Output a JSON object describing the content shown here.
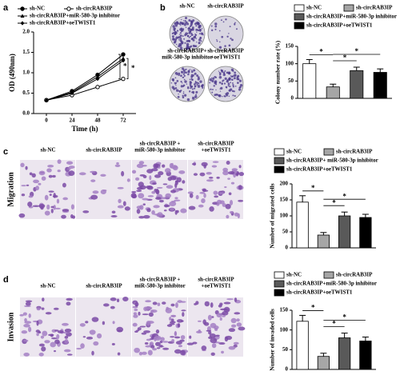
{
  "panels": {
    "letters": [
      "a",
      "b",
      "c",
      "d"
    ],
    "b_images": [
      [
        "sh-NC"
      ],
      [
        "sh-circRAB3IP"
      ],
      [
        "sh-circRAB3IP+",
        "miR-580-3p inhibitor"
      ],
      [
        "sh-circRAB3IP",
        "+oeTWIST1"
      ]
    ],
    "c_images": [
      [
        "sh-NC"
      ],
      [
        "sh-circRAB3IP"
      ],
      [
        "sh-circRAB3IP +",
        "miR-580-3p inhibitor"
      ],
      [
        "sh-circRAB3IP",
        "+oeTWIST1"
      ]
    ],
    "c_row": "Migration",
    "d_images": [
      [
        "sh-NC"
      ],
      [
        "sh-circRAB3IP"
      ],
      [
        "sh-circRAB3IP +",
        "miR-580-3p inhibitor"
      ],
      [
        "sh-circRAB3IP",
        "+oeTWIST1"
      ]
    ],
    "d_row": "Invasion"
  },
  "chart_data": [
    {
      "type": "line",
      "x_label": "Time (h)",
      "y_label": "OD (490nm)",
      "x": [
        0,
        24,
        48,
        72
      ],
      "xlim": [
        -12,
        84
      ],
      "xticks": [
        0,
        24,
        48,
        72
      ],
      "ylim": [
        0,
        2.0
      ],
      "yticks": [
        {
          "value": 0,
          "label": "0.0"
        },
        0.5,
        {
          "value": 1,
          "label": "1.0"
        },
        1.5,
        {
          "value": 2,
          "label": "2.0"
        }
      ],
      "series": [
        {
          "name": "sh-NC",
          "color": "#000000",
          "marker": "circle",
          "values": [
            0.33,
            0.55,
            0.95,
            1.45
          ]
        },
        {
          "name": "sh-circRAB3IP",
          "color": "#000000",
          "marker": "open-circle",
          "values": [
            0.33,
            0.45,
            0.65,
            0.85
          ]
        },
        {
          "name": "sh-circRAB3IP+miR-580-3p inhibitor",
          "color": "#000000",
          "marker": "triangle",
          "values": [
            0.33,
            0.52,
            0.9,
            1.35
          ]
        },
        {
          "name": "sh-circRAB3IP+oeTWIST1",
          "color": "#000000",
          "marker": "diamond",
          "values": [
            0.32,
            0.5,
            0.85,
            1.3
          ]
        }
      ],
      "annotations": [
        "*",
        "*"
      ]
    },
    {
      "type": "bar",
      "y_label": "Colony number rate (%)",
      "categories": [
        null
      ],
      "ylim": [
        0,
        150
      ],
      "yticks": [
        0,
        50,
        100,
        150
      ],
      "series": [
        {
          "name": "sh-NC",
          "color": "#ffffff",
          "values": [
            100
          ],
          "errors": [
            12
          ]
        },
        {
          "name": "sh-circRAB3IP",
          "color": "#a6a6a6",
          "values": [
            33
          ],
          "errors": [
            8
          ]
        },
        {
          "name": "sh-circRAB3IP+miR-580-3p inhibitor",
          "color": "#595959",
          "values": [
            80
          ],
          "errors": [
            10
          ]
        },
        {
          "name": "sh-circRAB3IP+oeTWIST1",
          "color": "#000000",
          "values": [
            75
          ],
          "errors": [
            10
          ]
        }
      ],
      "annotations": [
        "*",
        "*",
        "*"
      ]
    },
    {
      "type": "bar",
      "y_label": "Number of migrated cells",
      "categories": [
        null
      ],
      "ylim": [
        0,
        200
      ],
      "yticks": [
        0,
        50,
        100,
        150,
        200
      ],
      "series": [
        {
          "name": "sh-NC",
          "color": "#ffffff",
          "values": [
            143
          ],
          "errors": [
            20
          ]
        },
        {
          "name": "sh-circRAB3IP",
          "color": "#a6a6a6",
          "values": [
            40
          ],
          "errors": [
            8
          ]
        },
        {
          "name": "sh-circRAB3IP+ miR-580-3p inhibitor",
          "color": "#595959",
          "values": [
            100
          ],
          "errors": [
            12
          ]
        },
        {
          "name": "sh-circRAB3IP+oeTWIST1",
          "color": "#000000",
          "values": [
            95
          ],
          "errors": [
            10
          ]
        }
      ],
      "annotations": [
        "*",
        "*",
        "*"
      ]
    },
    {
      "type": "bar",
      "y_label": "Number of invaded cells",
      "categories": [
        null
      ],
      "ylim": [
        0,
        150
      ],
      "yticks": [
        0,
        50,
        100,
        150
      ],
      "series": [
        {
          "name": "sh-NC",
          "color": "#ffffff",
          "values": [
            122
          ],
          "errors": [
            15
          ]
        },
        {
          "name": "sh-circRAB3IP",
          "color": "#a6a6a6",
          "values": [
            33
          ],
          "errors": [
            8
          ]
        },
        {
          "name": "sh-circRAB3IP+miR-580-3p inhibitor",
          "color": "#595959",
          "values": [
            80
          ],
          "errors": [
            12
          ]
        },
        {
          "name": "sh-circRAB3IP+oeTWIST1",
          "color": "#000000",
          "values": [
            72
          ],
          "errors": [
            10
          ]
        }
      ],
      "annotations": [
        "*",
        "*",
        "*"
      ]
    }
  ]
}
